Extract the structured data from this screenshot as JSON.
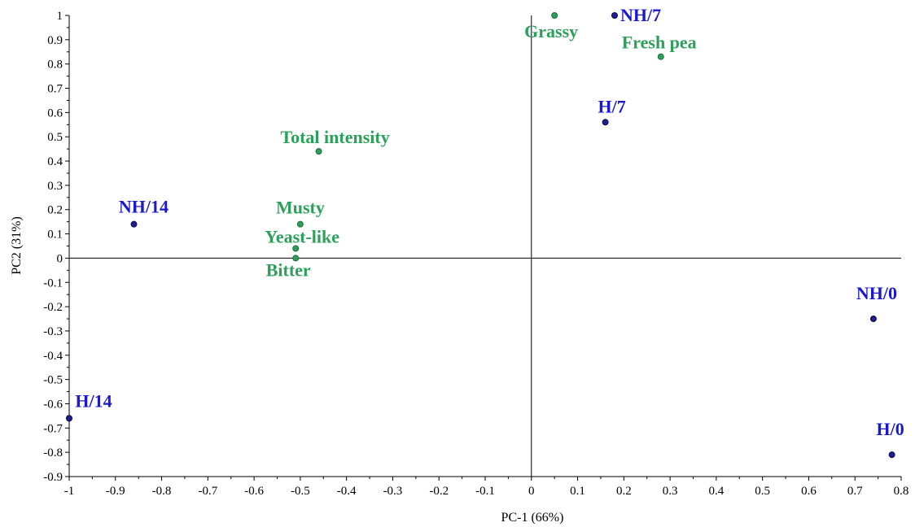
{
  "chart_data": {
    "type": "scatter",
    "title": "",
    "xlabel": "PC-1 (66%)",
    "ylabel": "PC2 (31%)",
    "xlim": [
      -1,
      0.8
    ],
    "ylim": [
      -0.9,
      1
    ],
    "x_ticks": [
      "-1",
      "-0.9",
      "-0.8",
      "-0.7",
      "-0.6",
      "-0.5",
      "-0.4",
      "-0.3",
      "-0.2",
      "-0.1",
      "0",
      "0.1",
      "0.2",
      "0.3",
      "0.4",
      "0.5",
      "0.6",
      "0.7",
      "0.8"
    ],
    "y_ticks": [
      "-0.9",
      "-0.8",
      "-0.7",
      "-0.6",
      "-0.5",
      "-0.4",
      "-0.3",
      "-0.2",
      "-0.1",
      "0",
      "0.1",
      "0.2",
      "0.3",
      "0.4",
      "0.5",
      "0.6",
      "0.7",
      "0.8",
      "0.9",
      "1"
    ],
    "grid": false,
    "colors": {
      "samples": "#1a1acc",
      "attributes": "#2ca05a"
    },
    "series": [
      {
        "group": "samples",
        "points": [
          {
            "label": "NH/7",
            "x": 0.18,
            "y": 1.0
          },
          {
            "label": "H/7",
            "x": 0.16,
            "y": 0.56
          },
          {
            "label": "NH/14",
            "x": -0.86,
            "y": 0.14
          },
          {
            "label": "NH/0",
            "x": 0.74,
            "y": -0.25
          },
          {
            "label": "H/14",
            "x": -1.0,
            "y": -0.66
          },
          {
            "label": "H/0",
            "x": 0.78,
            "y": -0.81
          }
        ]
      },
      {
        "group": "attributes",
        "points": [
          {
            "label": "Grassy",
            "x": 0.05,
            "y": 1.0
          },
          {
            "label": "Fresh pea",
            "x": 0.28,
            "y": 0.83
          },
          {
            "label": "Total intensity",
            "x": -0.46,
            "y": 0.44
          },
          {
            "label": "Musty",
            "x": -0.5,
            "y": 0.14
          },
          {
            "label": "Yeast-like",
            "x": -0.51,
            "y": 0.04
          },
          {
            "label": "Bitter",
            "x": -0.51,
            "y": 0.0
          }
        ]
      }
    ]
  }
}
